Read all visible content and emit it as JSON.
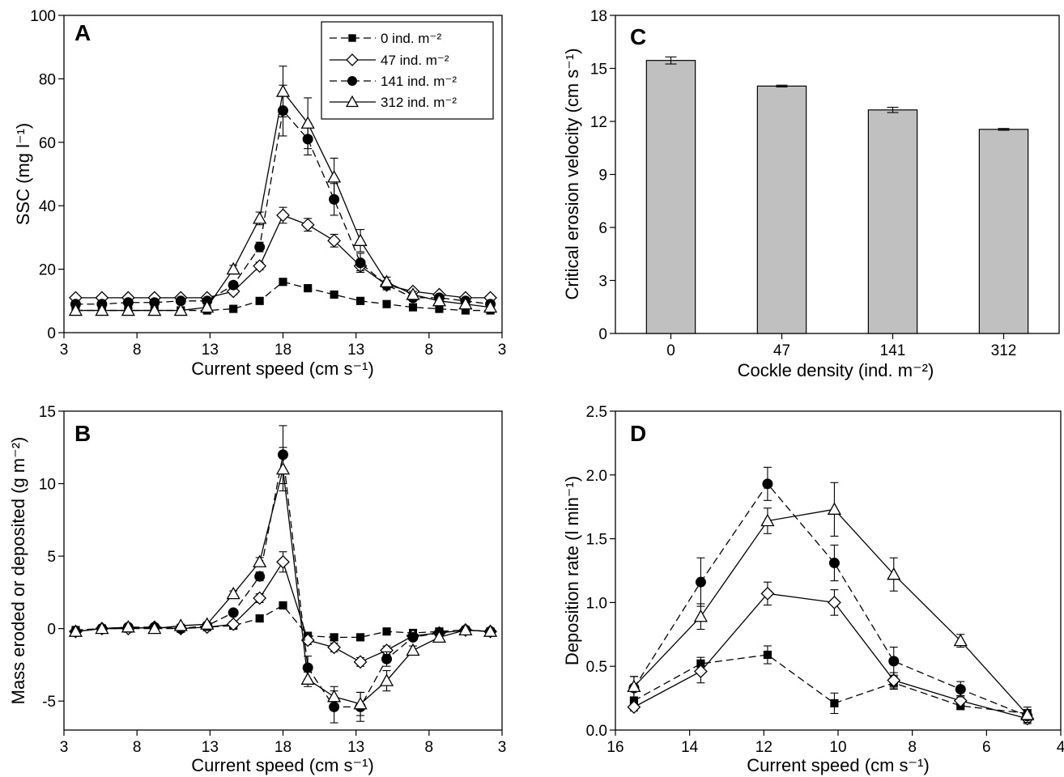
{
  "chart_data": [
    {
      "panel": "A",
      "type": "line",
      "xlabel": "Current speed (cm s⁻¹)",
      "ylabel": "SSC (mg l⁻¹)",
      "xtick_labels": [
        "3",
        "8",
        "13",
        "18",
        "13",
        "8",
        "3"
      ],
      "ylim": [
        0,
        100
      ],
      "yticks": [
        0,
        20,
        40,
        60,
        80,
        100
      ],
      "legend_position": "top-right",
      "x_positions": [
        3.8,
        5.6,
        7.4,
        9.2,
        11,
        12.8,
        14.6,
        16.4,
        18,
        19.7,
        21.5,
        23.3,
        25.1,
        26.9,
        28.7,
        30.5,
        32.2
      ],
      "series": [
        {
          "name": "0 ind. m⁻²",
          "marker": "square",
          "dash": true,
          "values": [
            7,
            7,
            7,
            7,
            7,
            7,
            7.5,
            10,
            16,
            14,
            12,
            10,
            9,
            8,
            7.5,
            7,
            7
          ],
          "errors": [
            0.5,
            0.5,
            0.5,
            0.5,
            0.5,
            0.5,
            0.5,
            0.8,
            1,
            0.8,
            0.8,
            0.6,
            0.5,
            0.5,
            0.5,
            0.5,
            0.5
          ]
        },
        {
          "name": "47 ind. m⁻²",
          "marker": "diamond",
          "dash": false,
          "values": [
            11,
            11,
            11,
            11,
            11,
            11,
            13,
            21,
            37,
            34,
            29,
            21,
            15,
            13,
            12,
            11,
            11
          ],
          "errors": [
            0.5,
            0.5,
            0.5,
            0.5,
            0.5,
            0.5,
            1,
            1.2,
            2.5,
            2,
            2,
            1.5,
            1,
            0.6,
            0.5,
            0.5,
            0.5
          ]
        },
        {
          "name": "141 ind. m⁻²",
          "marker": "circle",
          "dash": true,
          "values": [
            9,
            9,
            9.5,
            9.5,
            10,
            10,
            15,
            27,
            70,
            61,
            42,
            22,
            15,
            11,
            11,
            10,
            9
          ],
          "errors": [
            0.5,
            0.5,
            0.5,
            0.5,
            0.5,
            0.5,
            1,
            1.5,
            8,
            5,
            5,
            3,
            1.5,
            1,
            0.6,
            0.5,
            0.5
          ]
        },
        {
          "name": "312 ind. m⁻²",
          "marker": "triangle",
          "dash": false,
          "values": [
            7,
            7,
            7,
            7,
            7,
            8,
            20,
            36,
            76,
            66,
            49,
            29,
            16,
            12,
            10,
            9,
            8
          ],
          "errors": [
            0.5,
            0.5,
            0.5,
            0.5,
            0.5,
            0.5,
            1.2,
            2,
            8,
            8,
            6,
            3.5,
            1.5,
            1,
            0.6,
            0.5,
            0.5
          ]
        }
      ]
    },
    {
      "panel": "B",
      "type": "line",
      "xlabel": "Current speed (cm s⁻¹)",
      "ylabel": "Mass eroded or deposited (g m⁻²)",
      "xtick_labels": [
        "3",
        "8",
        "13",
        "18",
        "13",
        "8",
        "3"
      ],
      "ylim": [
        -7,
        15
      ],
      "yticks": [
        -5,
        0,
        5,
        10,
        15
      ],
      "x_positions": [
        3.8,
        5.6,
        7.4,
        9.2,
        11,
        12.8,
        14.6,
        16.4,
        18,
        19.7,
        21.5,
        23.3,
        25.1,
        26.9,
        28.7,
        30.5,
        32.2
      ],
      "series": [
        {
          "name": "0 ind. m⁻²",
          "marker": "square",
          "dash": true,
          "values": [
            -0.1,
            0,
            0,
            0,
            0,
            0.1,
            0.2,
            0.7,
            1.6,
            -0.5,
            -0.6,
            -0.6,
            -0.2,
            -0.3,
            -0.2,
            -0.1,
            -0.2
          ],
          "errors": [
            0.1,
            0.1,
            0.1,
            0.1,
            0.1,
            0.1,
            0.1,
            0.2,
            0.2,
            0.2,
            0.2,
            0.2,
            0.1,
            0.1,
            0.1,
            0.1,
            0.1
          ]
        },
        {
          "name": "47 ind. m⁻²",
          "marker": "diamond",
          "dash": false,
          "values": [
            -0.2,
            0,
            0,
            0.1,
            0,
            0.1,
            0.3,
            2.1,
            4.6,
            -0.8,
            -1.3,
            -2.3,
            -1.5,
            -0.5,
            -0.3,
            -0.1,
            -0.2
          ],
          "errors": [
            0.1,
            0.1,
            0.1,
            0.1,
            0.1,
            0.1,
            0.2,
            0.3,
            0.7,
            0.3,
            0.3,
            0.3,
            0.3,
            0.2,
            0.1,
            0.1,
            0.1
          ]
        },
        {
          "name": "141 ind. m⁻²",
          "marker": "circle",
          "dash": true,
          "values": [
            -0.2,
            0,
            0.1,
            0.1,
            0,
            0.2,
            1.1,
            3.6,
            12,
            -2.7,
            -5.4,
            -5.4,
            -2.1,
            -0.6,
            -0.3,
            -0.1,
            -0.2
          ],
          "errors": [
            0.1,
            0.1,
            0.1,
            0.1,
            0.1,
            0.1,
            0.2,
            0.3,
            2,
            0.8,
            1.1,
            1,
            0.5,
            0.2,
            0.1,
            0.1,
            0.1
          ]
        },
        {
          "name": "312 ind. m⁻²",
          "marker": "triangle",
          "dash": false,
          "values": [
            -0.2,
            0,
            0.1,
            0,
            0.2,
            0.3,
            2.4,
            4.6,
            11,
            -3.5,
            -4.7,
            -5.2,
            -3.6,
            -1.5,
            -0.6,
            -0.1,
            -0.2
          ],
          "errors": [
            0.1,
            0.1,
            0.1,
            0.1,
            0.1,
            0.1,
            0.2,
            0.3,
            1.5,
            0.5,
            0.7,
            0.8,
            0.7,
            0.3,
            0.2,
            0.1,
            0.1
          ]
        }
      ]
    },
    {
      "panel": "C",
      "type": "bar",
      "xlabel": "Cockle density (ind. m⁻²)",
      "ylabel": "Critical erosion velocity (cm s⁻¹)",
      "categories": [
        "0",
        "47",
        "141",
        "312"
      ],
      "values": [
        15.45,
        14.0,
        12.65,
        11.55
      ],
      "errors": [
        0.2,
        0.05,
        0.15,
        0.05
      ],
      "ylim": [
        0,
        18
      ],
      "yticks": [
        0,
        3,
        6,
        9,
        12,
        15,
        18
      ],
      "bar_color": "#c0c0c0"
    },
    {
      "panel": "D",
      "type": "line",
      "xlabel": "Current speed (cm s⁻¹)",
      "ylabel": "Deposition rate (l min⁻¹)",
      "xlim": [
        16,
        4
      ],
      "xticks": [
        16,
        14,
        12,
        10,
        8,
        6,
        4
      ],
      "ylim": [
        0,
        2.5
      ],
      "yticks": [
        "0.0",
        "0.5",
        "1.0",
        "1.5",
        "2.0",
        "2.5"
      ],
      "x": [
        15.5,
        13.7,
        11.9,
        10.1,
        8.5,
        6.7,
        4.9
      ],
      "series": [
        {
          "name": "0 ind. m⁻²",
          "marker": "square",
          "dash": true,
          "values": [
            0.23,
            0.52,
            0.59,
            0.21,
            0.37,
            0.19,
            0.13
          ],
          "errors": [
            0.03,
            0.05,
            0.07,
            0.08,
            0.05,
            0.03,
            0.05
          ]
        },
        {
          "name": "47 ind. m⁻²",
          "marker": "diamond",
          "dash": false,
          "values": [
            0.18,
            0.46,
            1.07,
            1.0,
            0.39,
            0.23,
            0.09
          ],
          "errors": [
            0.03,
            0.09,
            0.09,
            0.1,
            0.06,
            0.04,
            0.04
          ]
        },
        {
          "name": "141 ind. m⁻²",
          "marker": "circle",
          "dash": true,
          "values": [
            0.33,
            1.16,
            1.93,
            1.31,
            0.54,
            0.32,
            0.11
          ],
          "errors": [
            0.09,
            0.19,
            0.13,
            0.14,
            0.11,
            0.06,
            0.05
          ]
        },
        {
          "name": "312 ind. m⁻²",
          "marker": "triangle",
          "dash": false,
          "values": [
            0.34,
            0.89,
            1.64,
            1.73,
            1.22,
            0.7,
            0.12
          ],
          "errors": [
            0.08,
            0.1,
            0.1,
            0.21,
            0.13,
            0.05,
            0.04
          ]
        }
      ]
    }
  ]
}
